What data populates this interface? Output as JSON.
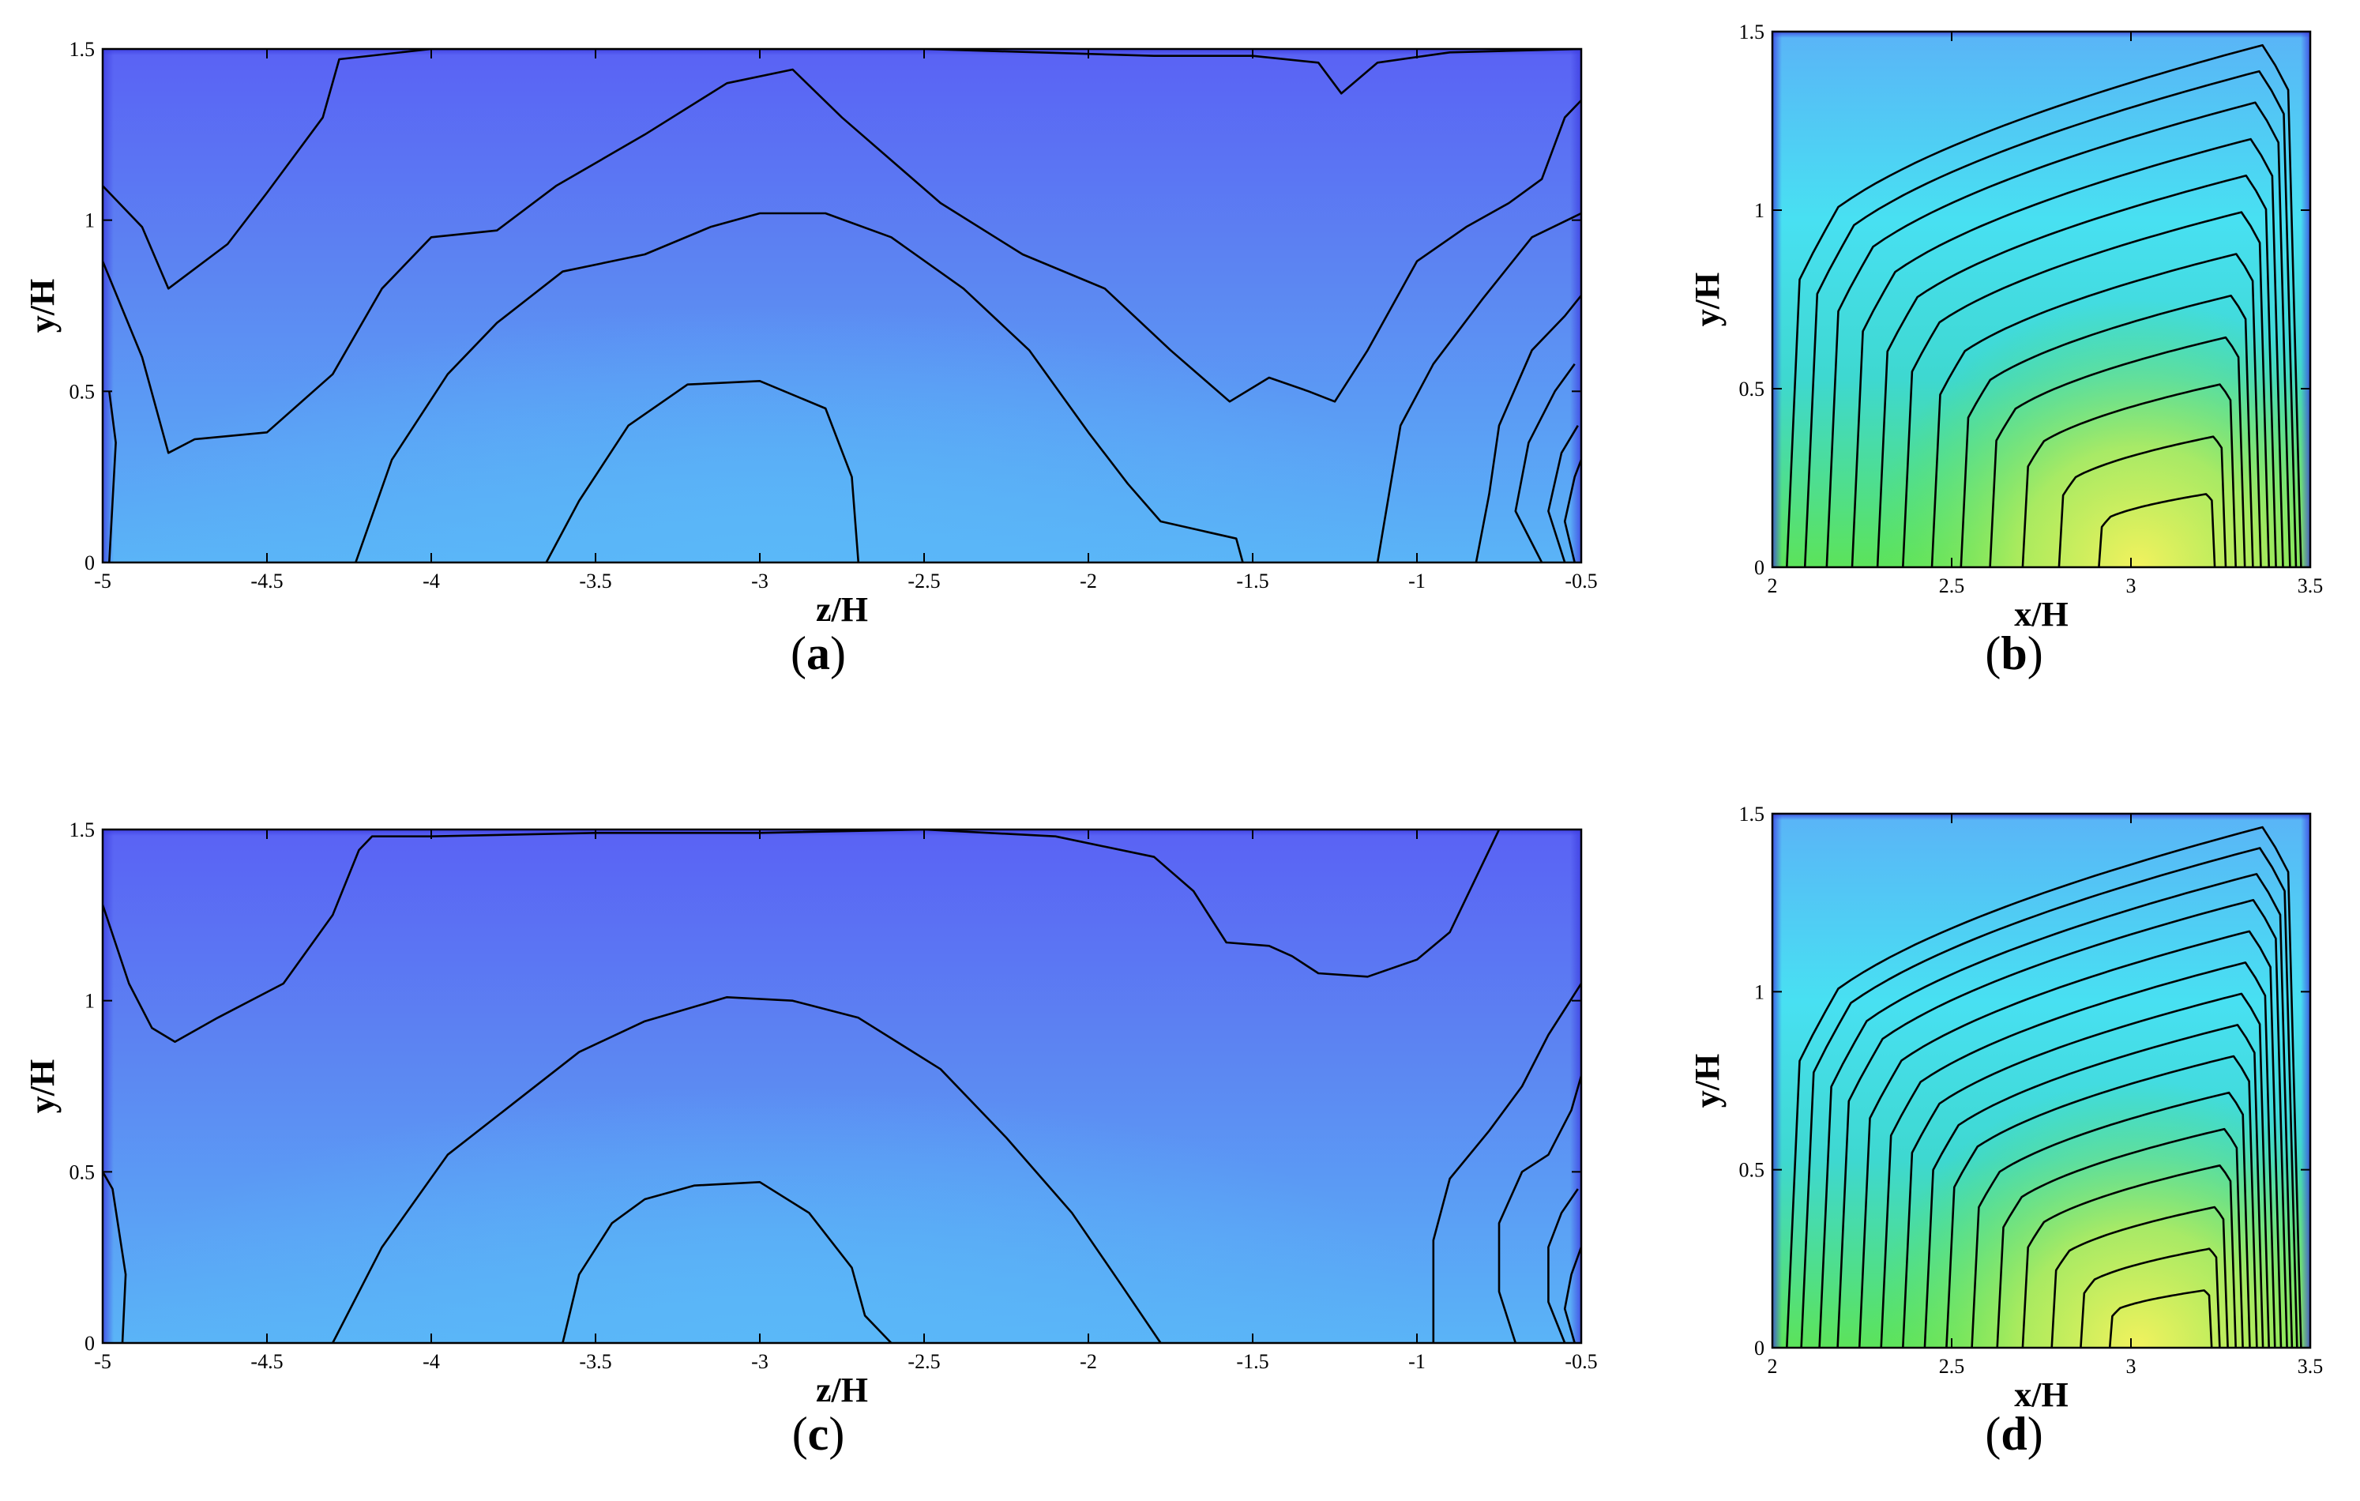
{
  "figure": {
    "panels": [
      {
        "id": "a",
        "caption_open": "(",
        "caption_letter": "a",
        "caption_close": ")"
      },
      {
        "id": "b",
        "caption_open": "(",
        "caption_letter": "b",
        "caption_close": ")"
      },
      {
        "id": "c",
        "caption_open": "(",
        "caption_letter": "c",
        "caption_close": ")"
      },
      {
        "id": "d",
        "caption_open": "(",
        "caption_letter": "d",
        "caption_close": ")"
      }
    ]
  },
  "colors": {
    "deep_blue": "#5a62f4",
    "mid_blue": "#5c86f2",
    "light_blue": "#5ab4f7",
    "cyan": "#44e6f2",
    "green": "#5ce35a",
    "yellow": "#f2f25e",
    "contour": "#000000"
  },
  "chart_data": [
    {
      "panel": "a",
      "type": "heatmap",
      "xlabel": "z/H",
      "ylabel": "y/H",
      "xlim": [
        -5,
        -0.5
      ],
      "ylim": [
        0,
        1.5
      ],
      "xticks": [
        "-5",
        "-4.5",
        "-4",
        "-3.5",
        "-3",
        "-2.5",
        "-2",
        "-1.5",
        "-1",
        "-0.5"
      ],
      "yticks": [
        "0",
        "0.5",
        "1",
        "1.5"
      ],
      "contours": [
        [
          [
            -5,
            1.1
          ],
          [
            -4.88,
            0.98
          ],
          [
            -4.8,
            0.8
          ],
          [
            -4.62,
            0.93
          ],
          [
            -4.5,
            1.08
          ],
          [
            -4.33,
            1.3
          ],
          [
            -4.28,
            1.47
          ],
          [
            -4,
            1.5
          ],
          [
            -3.5,
            1.5
          ],
          [
            -2.5,
            1.5
          ],
          [
            -1.8,
            1.48
          ],
          [
            -1.5,
            1.48
          ],
          [
            -1.3,
            1.46
          ],
          [
            -1.23,
            1.37
          ],
          [
            -1.12,
            1.46
          ],
          [
            -0.9,
            1.49
          ],
          [
            -0.5,
            1.5
          ]
        ],
        [
          [
            -5,
            0.88
          ],
          [
            -4.88,
            0.6
          ],
          [
            -4.8,
            0.32
          ],
          [
            -4.72,
            0.36
          ],
          [
            -4.5,
            0.38
          ],
          [
            -4.3,
            0.55
          ],
          [
            -4.15,
            0.8
          ],
          [
            -4,
            0.95
          ],
          [
            -3.8,
            0.97
          ],
          [
            -3.62,
            1.1
          ],
          [
            -3.35,
            1.25
          ],
          [
            -3.1,
            1.4
          ],
          [
            -2.9,
            1.44
          ],
          [
            -2.75,
            1.3
          ],
          [
            -2.45,
            1.05
          ],
          [
            -2.2,
            0.9
          ],
          [
            -1.95,
            0.8
          ],
          [
            -1.75,
            0.62
          ],
          [
            -1.57,
            0.47
          ],
          [
            -1.45,
            0.54
          ],
          [
            -1.33,
            0.5
          ],
          [
            -1.25,
            0.47
          ],
          [
            -1.15,
            0.62
          ],
          [
            -1.0,
            0.88
          ],
          [
            -0.85,
            0.98
          ],
          [
            -0.72,
            1.05
          ],
          [
            -0.62,
            1.12
          ],
          [
            -0.55,
            1.3
          ],
          [
            -0.5,
            1.35
          ]
        ],
        [
          [
            -4.23,
            0
          ],
          [
            -4.12,
            0.3
          ],
          [
            -3.95,
            0.55
          ],
          [
            -3.8,
            0.7
          ],
          [
            -3.6,
            0.85
          ],
          [
            -3.35,
            0.9
          ],
          [
            -3.15,
            0.98
          ],
          [
            -3.0,
            1.02
          ],
          [
            -2.8,
            1.02
          ],
          [
            -2.6,
            0.95
          ],
          [
            -2.38,
            0.8
          ],
          [
            -2.18,
            0.62
          ],
          [
            -2.0,
            0.38
          ],
          [
            -1.88,
            0.23
          ],
          [
            -1.78,
            0.12
          ],
          [
            -1.55,
            0.07
          ],
          [
            -1.53,
            0
          ]
        ],
        [
          [
            -3.65,
            0
          ],
          [
            -3.55,
            0.18
          ],
          [
            -3.4,
            0.4
          ],
          [
            -3.22,
            0.52
          ],
          [
            -3.0,
            0.53
          ],
          [
            -2.8,
            0.45
          ],
          [
            -2.72,
            0.25
          ],
          [
            -2.7,
            0
          ]
        ],
        [
          [
            -1.12,
            0
          ],
          [
            -1.05,
            0.4
          ],
          [
            -0.95,
            0.58
          ],
          [
            -0.8,
            0.77
          ],
          [
            -0.65,
            0.95
          ],
          [
            -0.5,
            1.02
          ]
        ],
        [
          [
            -0.82,
            0
          ],
          [
            -0.78,
            0.2
          ],
          [
            -0.75,
            0.4
          ],
          [
            -0.65,
            0.62
          ],
          [
            -0.55,
            0.72
          ],
          [
            -0.5,
            0.78
          ]
        ],
        [
          [
            -0.62,
            0
          ],
          [
            -0.7,
            0.15
          ],
          [
            -0.66,
            0.35
          ],
          [
            -0.58,
            0.5
          ],
          [
            -0.52,
            0.58
          ]
        ],
        [
          [
            -0.55,
            0
          ],
          [
            -0.6,
            0.15
          ],
          [
            -0.56,
            0.32
          ],
          [
            -0.51,
            0.4
          ]
        ],
        [
          [
            -0.52,
            0
          ],
          [
            -0.55,
            0.12
          ],
          [
            -0.52,
            0.25
          ],
          [
            -0.5,
            0.3
          ]
        ],
        [
          [
            -4.98,
            0
          ],
          [
            -4.96,
            0.35
          ],
          [
            -4.98,
            0.5
          ]
        ]
      ]
    },
    {
      "panel": "b",
      "type": "heatmap",
      "xlabel": "x/H",
      "ylabel": "y/H",
      "xlim": [
        2,
        3.5
      ],
      "ylim": [
        0,
        1.5
      ],
      "xticks": [
        "2",
        "2.5",
        "3",
        "3.5"
      ],
      "yticks": [
        "0",
        "0.5",
        "1",
        "1.5"
      ],
      "levels": [
        0.02,
        0.07,
        0.13,
        0.2,
        0.27,
        0.34,
        0.42,
        0.5,
        0.58,
        0.67,
        0.77,
        0.88
      ]
    },
    {
      "panel": "c",
      "type": "heatmap",
      "xlabel": "z/H",
      "ylabel": "y/H",
      "xlim": [
        -5,
        -0.5
      ],
      "ylim": [
        0,
        1.5
      ],
      "xticks": [
        "-5",
        "-4.5",
        "-4",
        "-3.5",
        "-3",
        "-2.5",
        "-2",
        "-1.5",
        "-1",
        "-0.5"
      ],
      "yticks": [
        "0",
        "0.5",
        "1",
        "1.5"
      ],
      "contours": [
        [
          [
            -5,
            1.28
          ],
          [
            -4.92,
            1.05
          ],
          [
            -4.85,
            0.92
          ],
          [
            -4.78,
            0.88
          ],
          [
            -4.65,
            0.95
          ],
          [
            -4.45,
            1.05
          ],
          [
            -4.3,
            1.25
          ],
          [
            -4.22,
            1.44
          ],
          [
            -4.18,
            1.48
          ],
          [
            -4,
            1.48
          ],
          [
            -3.5,
            1.49
          ],
          [
            -3,
            1.49
          ],
          [
            -2.5,
            1.5
          ],
          [
            -2.1,
            1.48
          ],
          [
            -1.8,
            1.42
          ],
          [
            -1.68,
            1.32
          ],
          [
            -1.58,
            1.17
          ],
          [
            -1.45,
            1.16
          ],
          [
            -1.38,
            1.13
          ],
          [
            -1.3,
            1.08
          ],
          [
            -1.15,
            1.07
          ],
          [
            -1.0,
            1.12
          ],
          [
            -0.9,
            1.2
          ],
          [
            -0.8,
            1.4
          ],
          [
            -0.75,
            1.5
          ]
        ],
        [
          [
            -4.3,
            0
          ],
          [
            -4.15,
            0.28
          ],
          [
            -3.95,
            0.55
          ],
          [
            -3.75,
            0.7
          ],
          [
            -3.55,
            0.85
          ],
          [
            -3.35,
            0.94
          ],
          [
            -3.1,
            1.01
          ],
          [
            -2.9,
            1.0
          ],
          [
            -2.7,
            0.95
          ],
          [
            -2.45,
            0.8
          ],
          [
            -2.25,
            0.6
          ],
          [
            -2.05,
            0.38
          ],
          [
            -1.9,
            0.17
          ],
          [
            -1.78,
            0
          ]
        ],
        [
          [
            -3.6,
            0
          ],
          [
            -3.55,
            0.2
          ],
          [
            -3.45,
            0.35
          ],
          [
            -3.35,
            0.42
          ],
          [
            -3.2,
            0.46
          ],
          [
            -3.0,
            0.47
          ],
          [
            -2.85,
            0.38
          ],
          [
            -2.72,
            0.22
          ],
          [
            -2.68,
            0.08
          ],
          [
            -2.6,
            0
          ]
        ],
        [
          [
            -0.95,
            0
          ],
          [
            -0.95,
            0.3
          ],
          [
            -0.9,
            0.48
          ],
          [
            -0.78,
            0.62
          ],
          [
            -0.68,
            0.75
          ],
          [
            -0.6,
            0.9
          ],
          [
            -0.5,
            1.05
          ]
        ],
        [
          [
            -0.7,
            0
          ],
          [
            -0.75,
            0.15
          ],
          [
            -0.75,
            0.35
          ],
          [
            -0.68,
            0.5
          ],
          [
            -0.6,
            0.55
          ],
          [
            -0.53,
            0.68
          ],
          [
            -0.5,
            0.78
          ]
        ],
        [
          [
            -0.55,
            0
          ],
          [
            -0.6,
            0.12
          ],
          [
            -0.6,
            0.28
          ],
          [
            -0.56,
            0.38
          ],
          [
            -0.51,
            0.45
          ]
        ],
        [
          [
            -0.52,
            0
          ],
          [
            -0.55,
            0.1
          ],
          [
            -0.53,
            0.2
          ],
          [
            -0.5,
            0.28
          ]
        ],
        [
          [
            -4.94,
            0
          ],
          [
            -4.93,
            0.2
          ],
          [
            -4.97,
            0.45
          ],
          [
            -5,
            0.5
          ]
        ]
      ]
    },
    {
      "panel": "d",
      "type": "heatmap",
      "xlabel": "x/H",
      "ylabel": "y/H",
      "xlim": [
        2,
        3.5
      ],
      "ylim": [
        0,
        1.5
      ],
      "xticks": [
        "2",
        "2.5",
        "3",
        "3.5"
      ],
      "yticks": [
        "0",
        "0.5",
        "1",
        "1.5"
      ],
      "levels": [
        0.02,
        0.06,
        0.11,
        0.16,
        0.22,
        0.28,
        0.34,
        0.4,
        0.46,
        0.53,
        0.6,
        0.67,
        0.75,
        0.83,
        0.91
      ]
    }
  ]
}
